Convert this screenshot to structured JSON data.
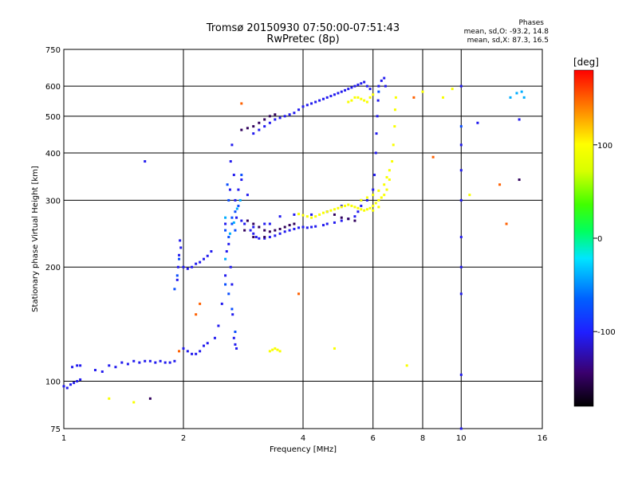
{
  "chart_data": {
    "type": "scatter",
    "title": "Tromsø 20150930 07:50:00-07:51:43",
    "subtitle": "RwPretec (8p)",
    "xlabel": "Frequency [MHz]",
    "ylabel": "Stationary phase Virtual Height [km]",
    "x_scale": "log",
    "y_scale": "log",
    "xlim": [
      1,
      16
    ],
    "ylim": [
      75,
      750
    ],
    "x_ticks": [
      1,
      2,
      4,
      6,
      8,
      10,
      16
    ],
    "x_tick_labels": [
      "1",
      "2",
      "4",
      "6",
      "8",
      "10",
      "16"
    ],
    "y_ticks": [
      75,
      100,
      200,
      300,
      400,
      500,
      600,
      750
    ],
    "y_tick_labels": [
      "75",
      "100",
      "200",
      "300",
      "400",
      "500",
      "600",
      "750"
    ],
    "grid": true,
    "stats": {
      "heading": "Phases",
      "line_o": "mean, sd,O: -93.2, 14.8",
      "line_x": "mean, sd,X:  87.3, 16.5"
    },
    "colorbar": {
      "label": "[deg]",
      "range": [
        -180,
        180
      ],
      "ticks": [
        100,
        0,
        -100
      ],
      "tick_labels": [
        "100",
        "0",
        "-100"
      ]
    },
    "series": [
      {
        "phase": -105,
        "points": [
          [
            1.0,
            97
          ],
          [
            1.02,
            96
          ],
          [
            1.04,
            98
          ],
          [
            1.06,
            99
          ],
          [
            1.08,
            100
          ],
          [
            1.1,
            101
          ],
          [
            1.05,
            109
          ],
          [
            1.08,
            110
          ],
          [
            1.1,
            110
          ],
          [
            1.2,
            107
          ],
          [
            1.25,
            106
          ],
          [
            1.3,
            110
          ],
          [
            1.35,
            109
          ],
          [
            1.4,
            112
          ],
          [
            1.45,
            111
          ],
          [
            1.5,
            113
          ],
          [
            1.55,
            112
          ],
          [
            1.6,
            113
          ],
          [
            1.65,
            113
          ],
          [
            1.7,
            112
          ],
          [
            1.75,
            113
          ],
          [
            1.8,
            112
          ],
          [
            1.85,
            112
          ],
          [
            1.9,
            113
          ],
          [
            1.93,
            185
          ],
          [
            1.94,
            200
          ],
          [
            1.95,
            215
          ],
          [
            1.96,
            235
          ],
          [
            1.97,
            225
          ],
          [
            2.0,
            200
          ],
          [
            2.05,
            198
          ],
          [
            2.1,
            200
          ],
          [
            2.15,
            204
          ],
          [
            2.2,
            206
          ],
          [
            2.25,
            210
          ],
          [
            2.3,
            214
          ],
          [
            2.35,
            220
          ],
          [
            2.0,
            122
          ],
          [
            2.05,
            120
          ],
          [
            2.1,
            118
          ],
          [
            2.15,
            118
          ],
          [
            2.2,
            120
          ],
          [
            2.25,
            124
          ],
          [
            2.3,
            126
          ],
          [
            2.4,
            130
          ],
          [
            2.45,
            140
          ],
          [
            2.5,
            160
          ],
          [
            2.55,
            190
          ],
          [
            2.57,
            220
          ],
          [
            2.55,
            260
          ],
          [
            2.6,
            230
          ],
          [
            2.63,
            200
          ],
          [
            2.65,
            180
          ],
          [
            2.66,
            150
          ],
          [
            2.68,
            130
          ],
          [
            2.7,
            125
          ],
          [
            2.72,
            122
          ],
          [
            2.62,
            320
          ],
          [
            2.63,
            380
          ],
          [
            2.65,
            420
          ],
          [
            2.68,
            350
          ],
          [
            2.7,
            300
          ],
          [
            2.75,
            320
          ],
          [
            2.8,
            340
          ],
          [
            2.9,
            310
          ],
          [
            2.72,
            270
          ],
          [
            2.8,
            265
          ],
          [
            2.85,
            260
          ],
          [
            2.95,
            250
          ],
          [
            3.0,
            245
          ],
          [
            3.05,
            240
          ],
          [
            3.1,
            238
          ],
          [
            3.2,
            238
          ],
          [
            3.3,
            240
          ],
          [
            3.4,
            242
          ],
          [
            3.5,
            245
          ],
          [
            3.6,
            248
          ],
          [
            3.7,
            250
          ],
          [
            3.8,
            252
          ],
          [
            3.9,
            254
          ],
          [
            4.0,
            255
          ],
          [
            4.1,
            254
          ],
          [
            4.2,
            255
          ],
          [
            4.3,
            256
          ],
          [
            4.5,
            258
          ],
          [
            4.6,
            260
          ],
          [
            4.8,
            262
          ],
          [
            5.0,
            265
          ],
          [
            5.2,
            268
          ],
          [
            5.4,
            272
          ],
          [
            5.5,
            280
          ],
          [
            5.6,
            290
          ],
          [
            5.8,
            300
          ],
          [
            6.0,
            320
          ],
          [
            6.05,
            350
          ],
          [
            6.1,
            400
          ],
          [
            6.12,
            450
          ],
          [
            6.15,
            500
          ],
          [
            6.18,
            550
          ],
          [
            6.2,
            600
          ],
          [
            5.6,
            300
          ],
          [
            5.0,
            290
          ],
          [
            4.6,
            280
          ],
          [
            4.2,
            275
          ],
          [
            3.8,
            275
          ],
          [
            3.5,
            272
          ],
          [
            3.3,
            260
          ],
          [
            3.2,
            260
          ],
          [
            3.0,
            255
          ],
          [
            3.0,
            450
          ],
          [
            3.1,
            460
          ],
          [
            3.2,
            470
          ],
          [
            3.3,
            480
          ],
          [
            3.4,
            490
          ],
          [
            3.5,
            495
          ],
          [
            3.6,
            500
          ],
          [
            3.7,
            505
          ],
          [
            3.8,
            510
          ],
          [
            3.9,
            520
          ],
          [
            4.0,
            530
          ],
          [
            4.1,
            535
          ],
          [
            4.2,
            540
          ],
          [
            4.3,
            545
          ],
          [
            4.4,
            550
          ],
          [
            4.5,
            555
          ],
          [
            4.6,
            560
          ],
          [
            4.7,
            565
          ],
          [
            4.8,
            570
          ],
          [
            4.9,
            575
          ],
          [
            5.0,
            580
          ],
          [
            5.1,
            585
          ],
          [
            5.2,
            590
          ],
          [
            5.3,
            595
          ],
          [
            5.4,
            600
          ],
          [
            5.5,
            605
          ],
          [
            5.6,
            610
          ],
          [
            5.7,
            615
          ],
          [
            5.8,
            600
          ],
          [
            5.9,
            590
          ],
          [
            6.3,
            620
          ],
          [
            6.4,
            630
          ],
          [
            6.45,
            600
          ],
          [
            10.0,
            600
          ],
          [
            10.0,
            420
          ],
          [
            10.0,
            360
          ],
          [
            10.0,
            300
          ],
          [
            10.0,
            240
          ],
          [
            10.0,
            200
          ],
          [
            10.0,
            170
          ],
          [
            10.0,
            104
          ],
          [
            10.0,
            75
          ],
          [
            1.6,
            380
          ],
          [
            14.0,
            490
          ],
          [
            11.0,
            480
          ]
        ]
      },
      {
        "phase": -150,
        "points": [
          [
            2.9,
            265
          ],
          [
            3.0,
            260
          ],
          [
            3.1,
            255
          ],
          [
            3.2,
            250
          ],
          [
            3.3,
            248
          ],
          [
            3.4,
            250
          ],
          [
            3.5,
            252
          ],
          [
            3.6,
            255
          ],
          [
            3.7,
            258
          ],
          [
            3.8,
            260
          ],
          [
            2.8,
            460
          ],
          [
            2.9,
            465
          ],
          [
            3.0,
            470
          ],
          [
            3.1,
            480
          ],
          [
            3.2,
            490
          ],
          [
            3.3,
            500
          ],
          [
            3.4,
            505
          ],
          [
            4.8,
            275
          ],
          [
            5.0,
            270
          ],
          [
            5.2,
            268
          ],
          [
            5.4,
            265
          ],
          [
            3.0,
            240
          ],
          [
            3.2,
            240
          ],
          [
            2.85,
            250
          ],
          [
            14.0,
            340
          ],
          [
            1.65,
            90
          ]
        ]
      },
      {
        "phase": -75,
        "points": [
          [
            2.55,
            250
          ],
          [
            2.6,
            240
          ],
          [
            2.65,
            260
          ],
          [
            2.7,
            280
          ],
          [
            2.75,
            290
          ],
          [
            2.6,
            300
          ],
          [
            2.65,
            270
          ],
          [
            2.7,
            250
          ],
          [
            2.58,
            330
          ],
          [
            2.8,
            350
          ],
          [
            2.55,
            180
          ],
          [
            2.6,
            170
          ],
          [
            2.65,
            155
          ],
          [
            1.95,
            210
          ],
          [
            1.93,
            190
          ],
          [
            1.9,
            175
          ],
          [
            10.0,
            470
          ],
          [
            6.2,
            580
          ],
          [
            2.7,
            135
          ]
        ]
      },
      {
        "phase": -40,
        "points": [
          [
            2.55,
            270
          ],
          [
            2.62,
            245
          ],
          [
            2.68,
            262
          ],
          [
            2.73,
            285
          ],
          [
            2.78,
            300
          ],
          [
            2.55,
            210
          ],
          [
            13.3,
            560
          ],
          [
            13.8,
            575
          ],
          [
            14.2,
            580
          ],
          [
            14.4,
            560
          ]
        ]
      },
      {
        "phase": 95,
        "points": [
          [
            3.3,
            120
          ],
          [
            3.35,
            121
          ],
          [
            3.4,
            122
          ],
          [
            3.45,
            121
          ],
          [
            3.5,
            120
          ],
          [
            3.9,
            276
          ],
          [
            4.0,
            274
          ],
          [
            4.1,
            272
          ],
          [
            4.2,
            270
          ],
          [
            4.3,
            272
          ],
          [
            4.4,
            275
          ],
          [
            4.5,
            278
          ],
          [
            4.6,
            280
          ],
          [
            4.7,
            282
          ],
          [
            4.8,
            284
          ],
          [
            4.9,
            286
          ],
          [
            5.0,
            288
          ],
          [
            5.1,
            290
          ],
          [
            5.2,
            292
          ],
          [
            5.3,
            290
          ],
          [
            5.4,
            288
          ],
          [
            5.5,
            286
          ],
          [
            5.6,
            284
          ],
          [
            5.7,
            282
          ],
          [
            5.8,
            284
          ],
          [
            5.9,
            286
          ],
          [
            6.0,
            290
          ],
          [
            6.1,
            295
          ],
          [
            6.2,
            300
          ],
          [
            6.3,
            305
          ],
          [
            6.4,
            310
          ],
          [
            6.5,
            320
          ],
          [
            6.6,
            340
          ],
          [
            6.7,
            380
          ],
          [
            6.75,
            420
          ],
          [
            6.8,
            470
          ],
          [
            6.82,
            520
          ],
          [
            6.85,
            560
          ],
          [
            5.5,
            560
          ],
          [
            5.6,
            555
          ],
          [
            5.7,
            550
          ],
          [
            5.8,
            545
          ],
          [
            5.9,
            560
          ],
          [
            6.0,
            570
          ],
          [
            5.3,
            550
          ],
          [
            5.4,
            560
          ],
          [
            5.2,
            545
          ],
          [
            5.6,
            300
          ],
          [
            5.8,
            305
          ],
          [
            6.0,
            310
          ],
          [
            6.2,
            318
          ],
          [
            6.4,
            330
          ],
          [
            6.5,
            345
          ],
          [
            6.6,
            360
          ],
          [
            1.3,
            90
          ],
          [
            1.5,
            88
          ],
          [
            4.8,
            122
          ],
          [
            7.3,
            110
          ],
          [
            8.0,
            580
          ],
          [
            9.0,
            560
          ],
          [
            9.5,
            590
          ],
          [
            10.5,
            310
          ],
          [
            6.0,
            282
          ],
          [
            6.2,
            288
          ]
        ]
      },
      {
        "phase": 150,
        "points": [
          [
            2.8,
            540
          ],
          [
            7.6,
            560
          ],
          [
            8.5,
            390
          ],
          [
            13.0,
            260
          ],
          [
            12.5,
            330
          ],
          [
            3.9,
            170
          ],
          [
            2.2,
            160
          ],
          [
            2.15,
            150
          ],
          [
            1.95,
            120
          ]
        ]
      }
    ]
  }
}
